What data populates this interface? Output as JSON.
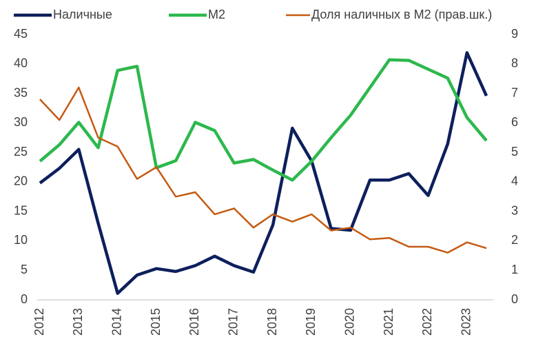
{
  "chart_data": {
    "type": "line",
    "categories": [
      "2012",
      null,
      "2013",
      null,
      "2014",
      null,
      "2015",
      null,
      "2016",
      null,
      "2017",
      null,
      "2018",
      null,
      "2019",
      null,
      "2020",
      null,
      "2021",
      null,
      "2022",
      null,
      "2023",
      null
    ],
    "series": [
      {
        "name": "Наличные",
        "color": "#0d1f5c",
        "values": [
          19.8,
          22.3,
          25.5,
          13,
          1.1,
          4.2,
          5.3,
          4.8,
          5.8,
          7.4,
          5.8,
          4.7,
          12.7,
          29.1,
          23.5,
          12.1,
          11.8,
          20.3,
          20.3,
          21.4,
          17.7,
          26.4,
          41.9,
          34.6
        ]
      },
      {
        "name": "M2",
        "color": "#2db84d",
        "values": [
          23.5,
          26.3,
          30.1,
          25.8,
          38.9,
          39.6,
          22.4,
          23.6,
          30.1,
          28.7,
          23.2,
          23.8,
          22.0,
          20.3,
          23.5,
          27.5,
          31.3,
          36.0,
          40.7,
          40.6,
          39.1,
          37.6,
          30.9,
          27.0
        ]
      },
      {
        "name": "Доля наличных в М2 (прав.шк.)",
        "color": "#c55a11",
        "axis": "y2",
        "values": [
          6.8,
          6.1,
          7.2,
          5.5,
          5.2,
          4.1,
          4.5,
          3.5,
          3.65,
          2.9,
          3.1,
          2.45,
          2.9,
          2.65,
          2.9,
          2.35,
          2.45,
          2.05,
          2.1,
          1.8,
          1.8,
          1.6,
          1.95,
          1.75
        ]
      }
    ],
    "ylim": [
      0,
      45
    ],
    "yticks": [
      0,
      5,
      10,
      15,
      20,
      25,
      30,
      35,
      40,
      45
    ],
    "y2lim": [
      0,
      9
    ],
    "y2ticks": [
      0,
      1,
      2,
      3,
      4,
      5,
      6,
      7,
      8,
      9
    ],
    "grid": false,
    "legend": "top"
  }
}
